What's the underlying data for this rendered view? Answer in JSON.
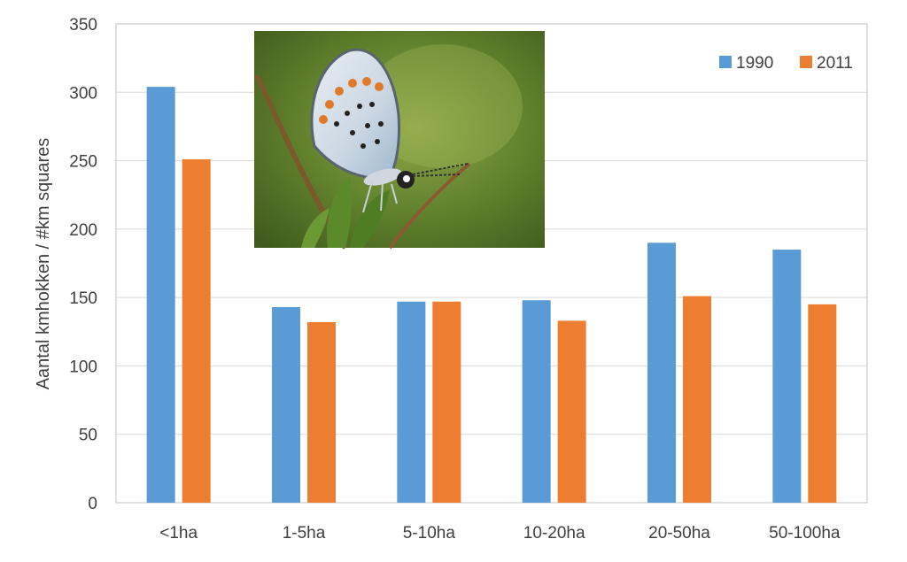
{
  "chart_data": {
    "type": "bar",
    "categories": [
      "<1ha",
      "1-5ha",
      "5-10ha",
      "10-20ha",
      "20-50ha",
      "50-100ha"
    ],
    "series": [
      {
        "name": "1990",
        "color": "#5b9bd5",
        "values": [
          304,
          143,
          147,
          148,
          190,
          185
        ]
      },
      {
        "name": "2011",
        "color": "#ed7d31",
        "values": [
          251,
          132,
          147,
          133,
          151,
          145
        ]
      }
    ],
    "title": "",
    "xlabel": "",
    "ylabel": "Aantal kmhokken / #km squares",
    "ylim": [
      0,
      350
    ],
    "yticks": [
      0,
      50,
      100,
      150,
      200,
      250,
      300,
      350
    ],
    "grid": true,
    "legend_position": "top-right",
    "inset_image": "butterfly-photo"
  }
}
